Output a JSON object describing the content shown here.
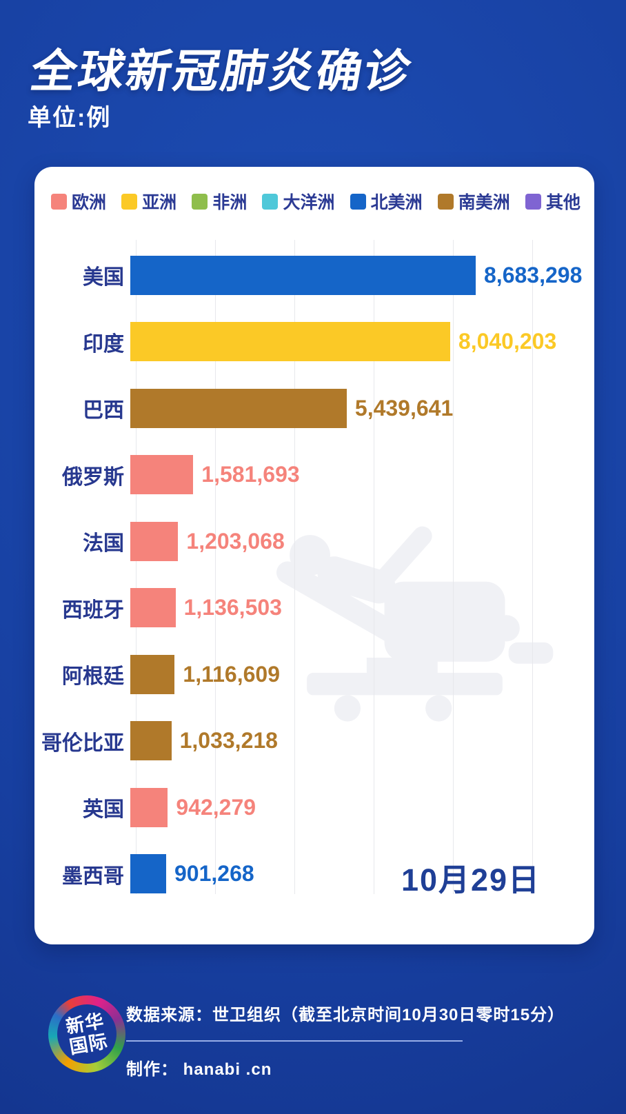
{
  "header": {
    "title": "全球新冠肺炎确诊",
    "unit_label": "单位:例"
  },
  "legend": [
    {
      "label": "欧洲",
      "color": "#f5837b"
    },
    {
      "label": "亚洲",
      "color": "#fbc926"
    },
    {
      "label": "非洲",
      "color": "#8fbe4c"
    },
    {
      "label": "大洋洲",
      "color": "#4fc8d9"
    },
    {
      "label": "北美洲",
      "color": "#1565c8"
    },
    {
      "label": "南美洲",
      "color": "#b0792a"
    },
    {
      "label": "其他",
      "color": "#7f64d2"
    }
  ],
  "chart_data": {
    "type": "bar",
    "orientation": "horizontal",
    "title": "全球新冠肺炎确诊",
    "unit": "单位:例",
    "date_label": "10月29日",
    "grid": true,
    "xlim": [
      0,
      11500000
    ],
    "categories": [
      "美国",
      "印度",
      "巴西",
      "俄罗斯",
      "法国",
      "西班牙",
      "阿根廷",
      "哥伦比亚",
      "英国",
      "墨西哥"
    ],
    "values": [
      8683298,
      8040203,
      5439641,
      1581693,
      1203068,
      1136503,
      1116609,
      1033218,
      942279,
      901268
    ],
    "value_labels": [
      "8,683,298",
      "8,040,203",
      "5,439,641",
      "1,581,693",
      "1,203,068",
      "1,136,503",
      "1,116,609",
      "1,033,218",
      "942,279",
      "901,268"
    ],
    "continents": [
      "北美洲",
      "亚洲",
      "南美洲",
      "欧洲",
      "欧洲",
      "欧洲",
      "南美洲",
      "南美洲",
      "欧洲",
      "北美洲"
    ],
    "bar_colors": [
      "#1565c8",
      "#fbc926",
      "#b0792a",
      "#f5837b",
      "#f5837b",
      "#f5837b",
      "#b0792a",
      "#b0792a",
      "#f5837b",
      "#1565c8"
    ]
  },
  "footer": {
    "source": "数据来源：世卫组织（截至北京时间10月30日零时15分）",
    "credit": "制作： hanabi .cn",
    "logo_line1": "新华",
    "logo_line2": "国际"
  },
  "colors": {
    "background": "#16409e",
    "card": "#ffffff",
    "label_navy": "#27388f",
    "date_navy": "#1f3f96",
    "grid_line": "#e7e8ec",
    "watermark": "#f0f1f5"
  }
}
